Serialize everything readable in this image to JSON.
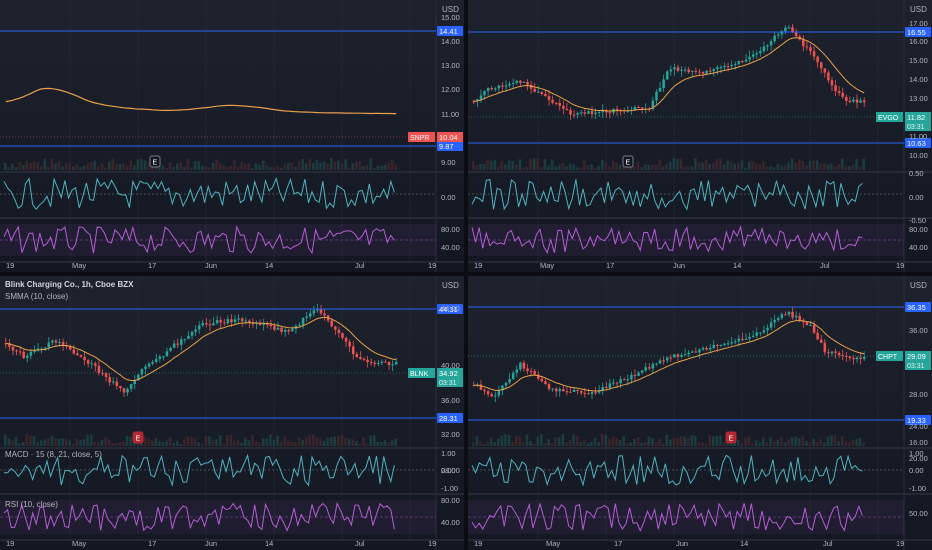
{
  "colors": {
    "hline": "#2962ff",
    "up": "#26a69a",
    "down": "#ef5350",
    "smma": "#e8a04a",
    "macd": "#4fb3bf",
    "rsi": "#b45fd4",
    "grid": "#2a2e39",
    "axis_text": "#b2b5be",
    "earnings": "#b22833"
  },
  "icons": [
    "earnings-marker-icon"
  ],
  "panes": [
    {
      "id": "snpr",
      "unit": "USD",
      "price_ticks": [
        "15.00",
        "14.00",
        "13.00",
        "12.00",
        "11.00",
        "10.00",
        "9.00"
      ],
      "hlines": [
        {
          "label": "14.41"
        },
        {
          "label": "9.87"
        }
      ],
      "ticker_tag": {
        "symbol": "SNPR",
        "price": "10.04",
        "time": "",
        "color": "#ef5350"
      },
      "earnings_label": "E",
      "macd_ticks": [
        "0.00"
      ],
      "rsi_ticks": [
        "80.00",
        "40.00"
      ],
      "time_ticks": [
        "19",
        "May",
        "17",
        "Jun",
        "14",
        "Jul",
        "19"
      ],
      "legend": {
        "title": "",
        "smma": "",
        "macd": "",
        "rsi": ""
      }
    },
    {
      "id": "evgo",
      "unit": "USD",
      "price_ticks": [
        "17.00",
        "16.00",
        "15.00",
        "14.00",
        "13.00",
        "12.00",
        "11.00",
        "10.00"
      ],
      "hlines": [
        {
          "label": "16.55"
        },
        {
          "label": "10.63"
        }
      ],
      "ticker_tag": {
        "symbol": "EVGO",
        "price": "11.82",
        "time": "03:31",
        "color": "#26a69a"
      },
      "earnings_label": "E",
      "macd_ticks": [
        "0.50",
        "0.00",
        "-0.50"
      ],
      "rsi_ticks": [
        "80.00",
        "40.00"
      ],
      "time_ticks": [
        "19",
        "May",
        "17",
        "Jun",
        "14",
        "Jul",
        "19"
      ],
      "legend": {
        "title": "",
        "smma": "",
        "macd": "",
        "rsi": ""
      }
    },
    {
      "id": "blnk",
      "unit": "USD",
      "price_ticks": [
        "44.00",
        "40.00",
        "36.00",
        "32.00",
        "28.00"
      ],
      "hlines": [
        {
          "label": "44.31"
        },
        {
          "label": "28.31"
        }
      ],
      "ticker_tag": {
        "symbol": "BLNK",
        "price": "34.92",
        "time": "03:31",
        "color": "#26a69a"
      },
      "earnings_label": "E",
      "macd_ticks": [
        "1.00",
        "0.00",
        "-1.00"
      ],
      "rsi_ticks": [
        "80.00",
        "40.00"
      ],
      "time_ticks": [
        "19",
        "May",
        "17",
        "Jun",
        "14",
        "Jul",
        "19"
      ],
      "legend": {
        "title": "Blink Charging Co., 1h, Cboe BZX",
        "smma": "SMMA (10, close)",
        "macd": "MACD · 15 (8, 21, close, 5)",
        "rsi": "RSI (10, close)"
      }
    },
    {
      "id": "chpt",
      "unit": "USD",
      "price_ticks": [
        "36.00",
        "32.00",
        "28.00",
        "24.00",
        "20.00",
        "16.00"
      ],
      "hlines": [
        {
          "label": "36.35"
        },
        {
          "label": "19.33"
        }
      ],
      "ticker_tag": {
        "symbol": "CHPT",
        "price": "29.09",
        "time": "03:31",
        "color": "#26a69a"
      },
      "earnings_label": "E",
      "macd_ticks": [
        "1.00",
        "0.00",
        "-1.00"
      ],
      "rsi_ticks": [
        "50.00"
      ],
      "time_ticks": [
        "19",
        "May",
        "17",
        "Jun",
        "14",
        "Jul",
        "19"
      ],
      "legend": {
        "title": "",
        "smma": "",
        "macd": "",
        "rsi": ""
      }
    }
  ]
}
